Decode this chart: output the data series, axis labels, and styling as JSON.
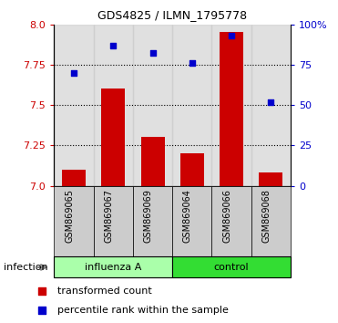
{
  "title": "GDS4825 / ILMN_1795778",
  "samples": [
    "GSM869065",
    "GSM869067",
    "GSM869069",
    "GSM869064",
    "GSM869066",
    "GSM869068"
  ],
  "groups": [
    "influenza A",
    "influenza A",
    "influenza A",
    "control",
    "control",
    "control"
  ],
  "transformed_count": [
    7.1,
    7.6,
    7.3,
    7.2,
    7.95,
    7.08
  ],
  "percentile_rank": [
    70,
    87,
    82,
    76,
    93,
    52
  ],
  "ylim_left": [
    7.0,
    8.0
  ],
  "ylim_right": [
    0,
    100
  ],
  "yticks_left": [
    7.0,
    7.25,
    7.5,
    7.75,
    8.0
  ],
  "yticks_right": [
    0,
    25,
    50,
    75,
    100
  ],
  "bar_color": "#cc0000",
  "scatter_color": "#0000cc",
  "group_color_influenza": "#aaffaa",
  "group_color_control": "#33dd33",
  "col_bg_color": "#cccccc",
  "bar_width": 0.6,
  "left_tick_color": "#cc0000",
  "right_tick_color": "#0000cc",
  "infection_label": "infection",
  "group_label_influenza": "influenza A",
  "group_label_control": "control",
  "legend_bar_label": "transformed count",
  "legend_scatter_label": "percentile rank within the sample",
  "influenza_count": 3,
  "control_count": 3
}
